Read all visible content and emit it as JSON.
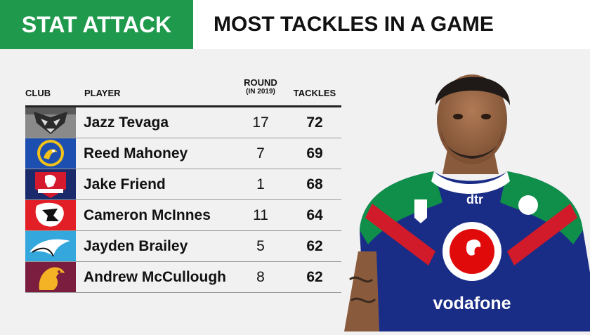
{
  "header": {
    "tag": "STAT ATTACK",
    "title": "MOST TACKLES IN A GAME"
  },
  "table": {
    "columns": {
      "club": "CLUB",
      "player": "PLAYER",
      "round": "ROUND",
      "round_sub": "(IN 2019)",
      "tackles": "TACKLES"
    },
    "rows": [
      {
        "player": "Jazz Tevaga",
        "round": "17",
        "tackles": "72"
      },
      {
        "player": "Reed Mahoney",
        "round": "7",
        "tackles": "69"
      },
      {
        "player": "Jake Friend",
        "round": "1",
        "tackles": "68"
      },
      {
        "player": "Cameron McInnes",
        "round": "11",
        "tackles": "64"
      },
      {
        "player": "Jayden Brailey",
        "round": "5",
        "tackles": "62"
      },
      {
        "player": "Andrew McCullough",
        "round": "8",
        "tackles": "62"
      }
    ]
  },
  "photo": {
    "jersey_sponsor": "vodafone",
    "jersey_brand": "dtr"
  },
  "colors": {
    "accent": "#1f9a4c",
    "jersey": "#1a2d86"
  }
}
